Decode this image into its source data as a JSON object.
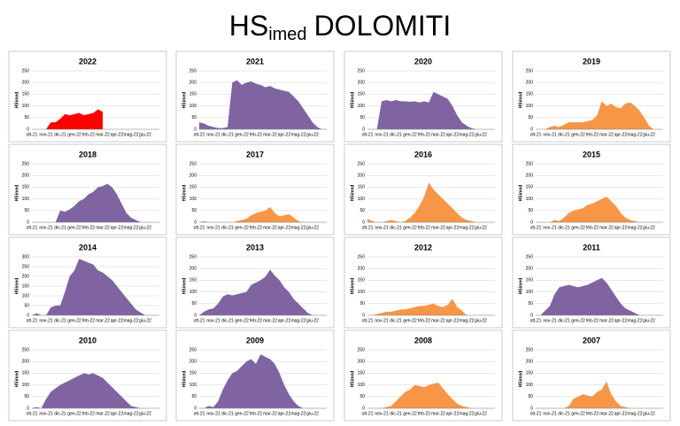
{
  "title": {
    "main": "HS",
    "sub": "imed",
    "rest": "DOLOMITI"
  },
  "chart_data": [
    {
      "type": "area",
      "title": "2022",
      "ylabel": "HSimed",
      "color": "#ff0000",
      "ylim": [
        0,
        250
      ],
      "yticks": [
        0,
        50,
        100,
        150,
        200,
        250
      ],
      "grid": true,
      "categories": [
        "ott-21",
        null,
        null,
        "nov-21",
        null,
        null,
        "dic-21",
        null,
        null,
        "gen-22",
        null,
        null,
        "feb-22",
        null,
        null,
        "mar-22",
        null,
        null,
        "apr-22",
        null,
        null,
        "mag-22",
        null,
        null,
        "giu-22",
        null,
        null
      ],
      "values": [
        0,
        0,
        0,
        0,
        30,
        30,
        45,
        65,
        60,
        65,
        70,
        60,
        65,
        70,
        85,
        75,
        null,
        null,
        null,
        null,
        null,
        null,
        null,
        null,
        null,
        null,
        null
      ]
    },
    {
      "type": "area",
      "title": "2021",
      "ylabel": "HSimed",
      "color": "#8064a2",
      "ylim": [
        0,
        250
      ],
      "yticks": [
        0,
        50,
        100,
        150,
        200,
        250
      ],
      "grid": true,
      "categories": [
        "ott-21",
        null,
        null,
        "nov-21",
        null,
        null,
        "dic-21",
        null,
        null,
        "gen-22",
        null,
        null,
        "feb-22",
        null,
        null,
        "mar-22",
        null,
        null,
        "apr-22",
        null,
        null,
        "mag-22",
        null,
        null,
        "giu-22",
        null,
        null
      ],
      "values": [
        30,
        25,
        15,
        10,
        5,
        5,
        10,
        200,
        210,
        190,
        200,
        205,
        195,
        190,
        180,
        185,
        175,
        170,
        165,
        160,
        140,
        120,
        90,
        60,
        30,
        10,
        0
      ]
    },
    {
      "type": "area",
      "title": "2020",
      "ylabel": "HSimed",
      "color": "#8064a2",
      "ylim": [
        0,
        250
      ],
      "yticks": [
        0,
        50,
        100,
        150,
        200,
        250
      ],
      "grid": true,
      "categories": [
        "ott-21",
        null,
        null,
        "nov-21",
        null,
        null,
        "dic-21",
        null,
        null,
        "gen-22",
        null,
        null,
        "feb-22",
        null,
        null,
        "mar-22",
        null,
        null,
        "apr-22",
        null,
        null,
        "mag-22",
        null,
        null,
        "giu-22",
        null,
        null
      ],
      "values": [
        0,
        0,
        0,
        120,
        125,
        120,
        125,
        120,
        120,
        118,
        120,
        115,
        120,
        115,
        160,
        150,
        140,
        130,
        100,
        60,
        30,
        15,
        5,
        0,
        0,
        0,
        0
      ]
    },
    {
      "type": "area",
      "title": "2019",
      "ylabel": "HSimed",
      "color": "#f79646",
      "ylim": [
        0,
        250
      ],
      "yticks": [
        0,
        50,
        100,
        150,
        200,
        250
      ],
      "grid": true,
      "categories": [
        "ott-21",
        null,
        null,
        "nov-21",
        null,
        null,
        "dic-21",
        null,
        null,
        "gen-22",
        null,
        null,
        "feb-22",
        null,
        null,
        "mar-22",
        null,
        null,
        "apr-22",
        null,
        null,
        "mag-22",
        null,
        null,
        "giu-22",
        null,
        null
      ],
      "values": [
        0,
        0,
        0,
        10,
        15,
        10,
        20,
        30,
        30,
        30,
        30,
        35,
        40,
        60,
        120,
        100,
        110,
        95,
        90,
        110,
        115,
        100,
        80,
        50,
        15,
        0,
        0
      ]
    },
    {
      "type": "area",
      "title": "2018",
      "ylabel": "HSimed",
      "color": "#8064a2",
      "ylim": [
        0,
        250
      ],
      "yticks": [
        0,
        50,
        100,
        150,
        200,
        250
      ],
      "grid": true,
      "categories": [
        "ott-21",
        null,
        null,
        "nov-21",
        null,
        null,
        "dic-21",
        null,
        null,
        "gen-22",
        null,
        null,
        "feb-22",
        null,
        null,
        "mar-22",
        null,
        null,
        "apr-22",
        null,
        null,
        "mag-22",
        null,
        null,
        "giu-22",
        null,
        null
      ],
      "values": [
        0,
        0,
        0,
        0,
        0,
        0,
        50,
        45,
        55,
        70,
        90,
        100,
        120,
        130,
        150,
        155,
        165,
        150,
        120,
        80,
        40,
        20,
        10,
        0,
        0,
        0,
        0
      ]
    },
    {
      "type": "area",
      "title": "2017",
      "ylabel": "HSimed",
      "color": "#f79646",
      "ylim": [
        0,
        250
      ],
      "yticks": [
        0,
        50,
        100,
        150,
        200,
        250
      ],
      "grid": true,
      "categories": [
        "ott-21",
        null,
        null,
        "nov-21",
        null,
        null,
        "dic-21",
        null,
        null,
        "gen-22",
        null,
        null,
        "feb-22",
        null,
        null,
        "mar-22",
        null,
        null,
        "apr-22",
        null,
        null,
        "mag-22",
        null,
        null,
        "giu-22",
        null,
        null
      ],
      "values": [
        0,
        5,
        0,
        0,
        0,
        0,
        0,
        0,
        5,
        10,
        15,
        30,
        40,
        45,
        50,
        65,
        40,
        25,
        30,
        35,
        20,
        5,
        0,
        0,
        0,
        0,
        0
      ]
    },
    {
      "type": "area",
      "title": "2016",
      "ylabel": "HSimed",
      "color": "#f79646",
      "ylim": [
        0,
        250
      ],
      "yticks": [
        0,
        50,
        100,
        150,
        200,
        250
      ],
      "grid": true,
      "categories": [
        "ott-21",
        null,
        null,
        "nov-21",
        null,
        null,
        "dic-21",
        null,
        null,
        "gen-22",
        null,
        null,
        "feb-22",
        null,
        null,
        "mar-22",
        null,
        null,
        "apr-22",
        null,
        null,
        "mag-22",
        null,
        null,
        "giu-22",
        null,
        null
      ],
      "values": [
        15,
        5,
        0,
        0,
        5,
        10,
        5,
        0,
        5,
        20,
        40,
        70,
        110,
        170,
        140,
        120,
        100,
        80,
        60,
        40,
        20,
        10,
        5,
        0,
        0,
        0,
        0
      ]
    },
    {
      "type": "area",
      "title": "2015",
      "ylabel": "HSimed",
      "color": "#f79646",
      "ylim": [
        0,
        250
      ],
      "yticks": [
        0,
        50,
        100,
        150,
        200,
        250
      ],
      "grid": true,
      "categories": [
        "ott-21",
        null,
        null,
        "nov-21",
        null,
        null,
        "dic-21",
        null,
        null,
        "gen-22",
        null,
        null,
        "feb-22",
        null,
        null,
        "mar-22",
        null,
        null,
        "apr-22",
        null,
        null,
        "mag-22",
        null,
        null,
        "giu-22",
        null,
        null
      ],
      "values": [
        0,
        0,
        0,
        0,
        10,
        5,
        20,
        40,
        50,
        55,
        60,
        75,
        80,
        90,
        100,
        110,
        90,
        70,
        40,
        20,
        10,
        5,
        0,
        0,
        0,
        0,
        0
      ]
    },
    {
      "type": "area",
      "title": "2014",
      "ylabel": "HSimed",
      "color": "#8064a2",
      "ylim": [
        0,
        300
      ],
      "yticks": [
        0,
        50,
        100,
        150,
        200,
        250,
        300
      ],
      "grid": true,
      "categories": [
        "ott-21",
        null,
        null,
        "nov-21",
        null,
        null,
        "dic-21",
        null,
        null,
        "gen-22",
        null,
        null,
        "feb-22",
        null,
        null,
        "mar-22",
        null,
        null,
        "apr-22",
        null,
        null,
        "mag-22",
        null,
        null,
        "giu-22",
        null,
        null
      ],
      "values": [
        0,
        10,
        0,
        0,
        40,
        50,
        50,
        120,
        200,
        230,
        290,
        280,
        270,
        260,
        230,
        220,
        200,
        180,
        150,
        120,
        90,
        60,
        30,
        15,
        0,
        0,
        0
      ]
    },
    {
      "type": "area",
      "title": "2013",
      "ylabel": "HSimed",
      "color": "#8064a2",
      "ylim": [
        0,
        250
      ],
      "yticks": [
        0,
        50,
        100,
        150,
        200,
        250
      ],
      "grid": true,
      "categories": [
        "ott-21",
        null,
        null,
        "nov-21",
        null,
        null,
        "dic-21",
        null,
        null,
        "gen-22",
        null,
        null,
        "feb-22",
        null,
        null,
        "mar-22",
        null,
        null,
        "apr-22",
        null,
        null,
        "mag-22",
        null,
        null,
        "giu-22",
        null,
        null
      ],
      "values": [
        0,
        15,
        25,
        30,
        50,
        80,
        90,
        85,
        90,
        95,
        100,
        130,
        140,
        150,
        165,
        195,
        170,
        150,
        120,
        100,
        70,
        50,
        30,
        10,
        0,
        0,
        0
      ]
    },
    {
      "type": "area",
      "title": "2012",
      "ylabel": "HSimed",
      "color": "#f79646",
      "ylim": [
        0,
        250
      ],
      "yticks": [
        0,
        50,
        100,
        150,
        200,
        250
      ],
      "grid": true,
      "categories": [
        "ott-21",
        null,
        null,
        "nov-21",
        null,
        null,
        "dic-21",
        null,
        null,
        "gen-22",
        null,
        null,
        "feb-22",
        null,
        null,
        "mar-22",
        null,
        null,
        "apr-22",
        null,
        null,
        "mag-22",
        null,
        null,
        "giu-22",
        null,
        null
      ],
      "values": [
        0,
        0,
        5,
        10,
        15,
        15,
        20,
        25,
        25,
        30,
        35,
        40,
        40,
        45,
        50,
        40,
        35,
        45,
        70,
        35,
        20,
        0,
        0,
        0,
        0,
        0,
        0
      ]
    },
    {
      "type": "area",
      "title": "2011",
      "ylabel": "HSimed",
      "color": "#8064a2",
      "ylim": [
        0,
        250
      ],
      "yticks": [
        0,
        50,
        100,
        150,
        200,
        250
      ],
      "grid": true,
      "categories": [
        "ott-21",
        null,
        null,
        "nov-21",
        null,
        null,
        "dic-21",
        null,
        null,
        "gen-22",
        null,
        null,
        "feb-22",
        null,
        null,
        "mar-22",
        null,
        null,
        "apr-22",
        null,
        null,
        "mag-22",
        null,
        null,
        "giu-22",
        null,
        null
      ],
      "values": [
        0,
        0,
        20,
        40,
        90,
        120,
        125,
        130,
        125,
        120,
        125,
        130,
        140,
        150,
        160,
        140,
        110,
        80,
        50,
        30,
        20,
        10,
        0,
        0,
        0,
        0,
        0
      ]
    },
    {
      "type": "area",
      "title": "2010",
      "ylabel": "HSimed",
      "color": "#8064a2",
      "ylim": [
        0,
        250
      ],
      "yticks": [
        0,
        50,
        100,
        150,
        200,
        250
      ],
      "grid": true,
      "categories": [
        "ott-21",
        null,
        null,
        "nov-21",
        null,
        null,
        "dic-21",
        null,
        null,
        "gen-22",
        null,
        null,
        "feb-22",
        null,
        null,
        "mar-22",
        null,
        null,
        "apr-22",
        null,
        null,
        "mag-22",
        null,
        null,
        "giu-22",
        null,
        null
      ],
      "values": [
        0,
        5,
        0,
        40,
        70,
        85,
        100,
        110,
        120,
        130,
        140,
        150,
        145,
        150,
        140,
        130,
        110,
        90,
        70,
        50,
        30,
        10,
        5,
        0,
        0,
        0,
        0
      ]
    },
    {
      "type": "area",
      "title": "2009",
      "ylabel": "HSimed",
      "color": "#8064a2",
      "ylim": [
        0,
        250
      ],
      "yticks": [
        0,
        50,
        100,
        150,
        200,
        250
      ],
      "grid": true,
      "categories": [
        "ott-21",
        null,
        null,
        "nov-21",
        null,
        null,
        "dic-21",
        null,
        null,
        "gen-22",
        null,
        null,
        "feb-22",
        null,
        null,
        "mar-22",
        null,
        null,
        "apr-22",
        null,
        null,
        "mag-22",
        null,
        null,
        "giu-22",
        null,
        null
      ],
      "values": [
        0,
        0,
        10,
        5,
        30,
        80,
        120,
        150,
        160,
        180,
        200,
        210,
        190,
        230,
        220,
        210,
        190,
        150,
        100,
        60,
        30,
        10,
        0,
        0,
        0,
        0,
        0
      ]
    },
    {
      "type": "area",
      "title": "2008",
      "ylabel": "HSimed",
      "color": "#f79646",
      "ylim": [
        0,
        250
      ],
      "yticks": [
        0,
        50,
        100,
        150,
        200,
        250
      ],
      "grid": true,
      "categories": [
        "ott-21",
        null,
        null,
        "nov-21",
        null,
        null,
        "dic-21",
        null,
        null,
        "gen-22",
        null,
        null,
        "feb-22",
        null,
        null,
        "mar-22",
        null,
        null,
        "apr-22",
        null,
        null,
        "mag-22",
        null,
        null,
        "giu-22",
        null,
        null
      ],
      "values": [
        0,
        0,
        0,
        0,
        5,
        10,
        30,
        50,
        70,
        80,
        100,
        95,
        90,
        100,
        105,
        110,
        85,
        60,
        40,
        20,
        10,
        5,
        0,
        0,
        0,
        0,
        0
      ]
    },
    {
      "type": "area",
      "title": "2007",
      "ylabel": "HSimed",
      "color": "#f79646",
      "ylim": [
        0,
        250
      ],
      "yticks": [
        0,
        50,
        100,
        150,
        200,
        250
      ],
      "grid": true,
      "categories": [
        "ott-21",
        null,
        null,
        "nov-21",
        null,
        null,
        "dic-21",
        null,
        null,
        "gen-22",
        null,
        null,
        "feb-22",
        null,
        null,
        "mar-22",
        null,
        null,
        "apr-22",
        null,
        null,
        "mag-22",
        null,
        null,
        "giu-22",
        null,
        null
      ],
      "values": [
        0,
        0,
        0,
        0,
        0,
        0,
        0,
        10,
        40,
        50,
        60,
        55,
        50,
        70,
        80,
        115,
        60,
        30,
        10,
        5,
        0,
        0,
        0,
        0,
        0,
        0,
        0
      ]
    }
  ]
}
